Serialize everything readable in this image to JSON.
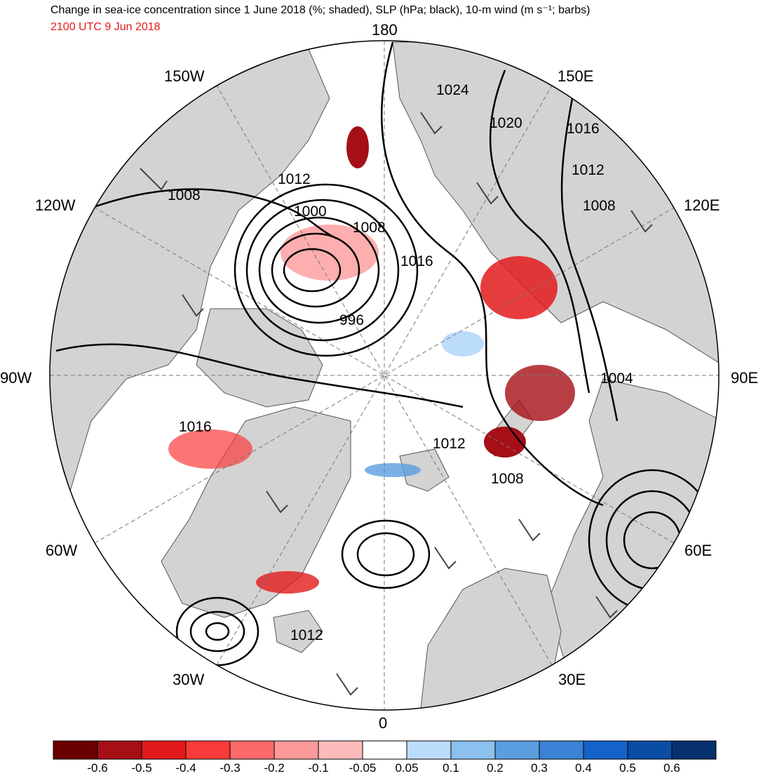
{
  "title": "Change in sea-ice concentration since 1 June 2018 (%; shaded), SLP (hPa; black), 10-m wind (m s⁻¹; barbs)",
  "valid_time": "2100 UTC 9 Jun 2018",
  "longitude_labels": {
    "top": "180",
    "bottom": "0",
    "left": "90W",
    "right": "90E",
    "nw": "150W",
    "wnw": "120W",
    "wsw": "60W",
    "sw": "30W",
    "ne": "150E",
    "ene": "120E",
    "ese": "60E",
    "se": "30E"
  },
  "slp_labels": [
    "1024",
    "1020",
    "1016",
    "1012",
    "1008",
    "1012",
    "1008",
    "1000",
    "1008",
    "1016",
    "996",
    "1004",
    "1016",
    "1012",
    "1008",
    "1012"
  ],
  "colorbar": {
    "labels": [
      "-0.6",
      "-0.5",
      "-0.4",
      "-0.3",
      "-0.2",
      "-0.1",
      "-0.05",
      "0.05",
      "0.1",
      "0.2",
      "0.3",
      "0.4",
      "0.5",
      "0.6"
    ],
    "colors": [
      "#6b0000",
      "#a50f15",
      "#e31a1c",
      "#fb3b3b",
      "#fc6a6a",
      "#fc9a9a",
      "#fdbcbc",
      "#ffffff",
      "#bcdcfb",
      "#8cc0ee",
      "#5a9ee0",
      "#3a82d6",
      "#1463c8",
      "#0b4ca5",
      "#07306e"
    ]
  },
  "map_colors": {
    "land": "#d3d3d3",
    "ocean": "#ffffff",
    "contour": "#000000",
    "barb": "#444444"
  }
}
